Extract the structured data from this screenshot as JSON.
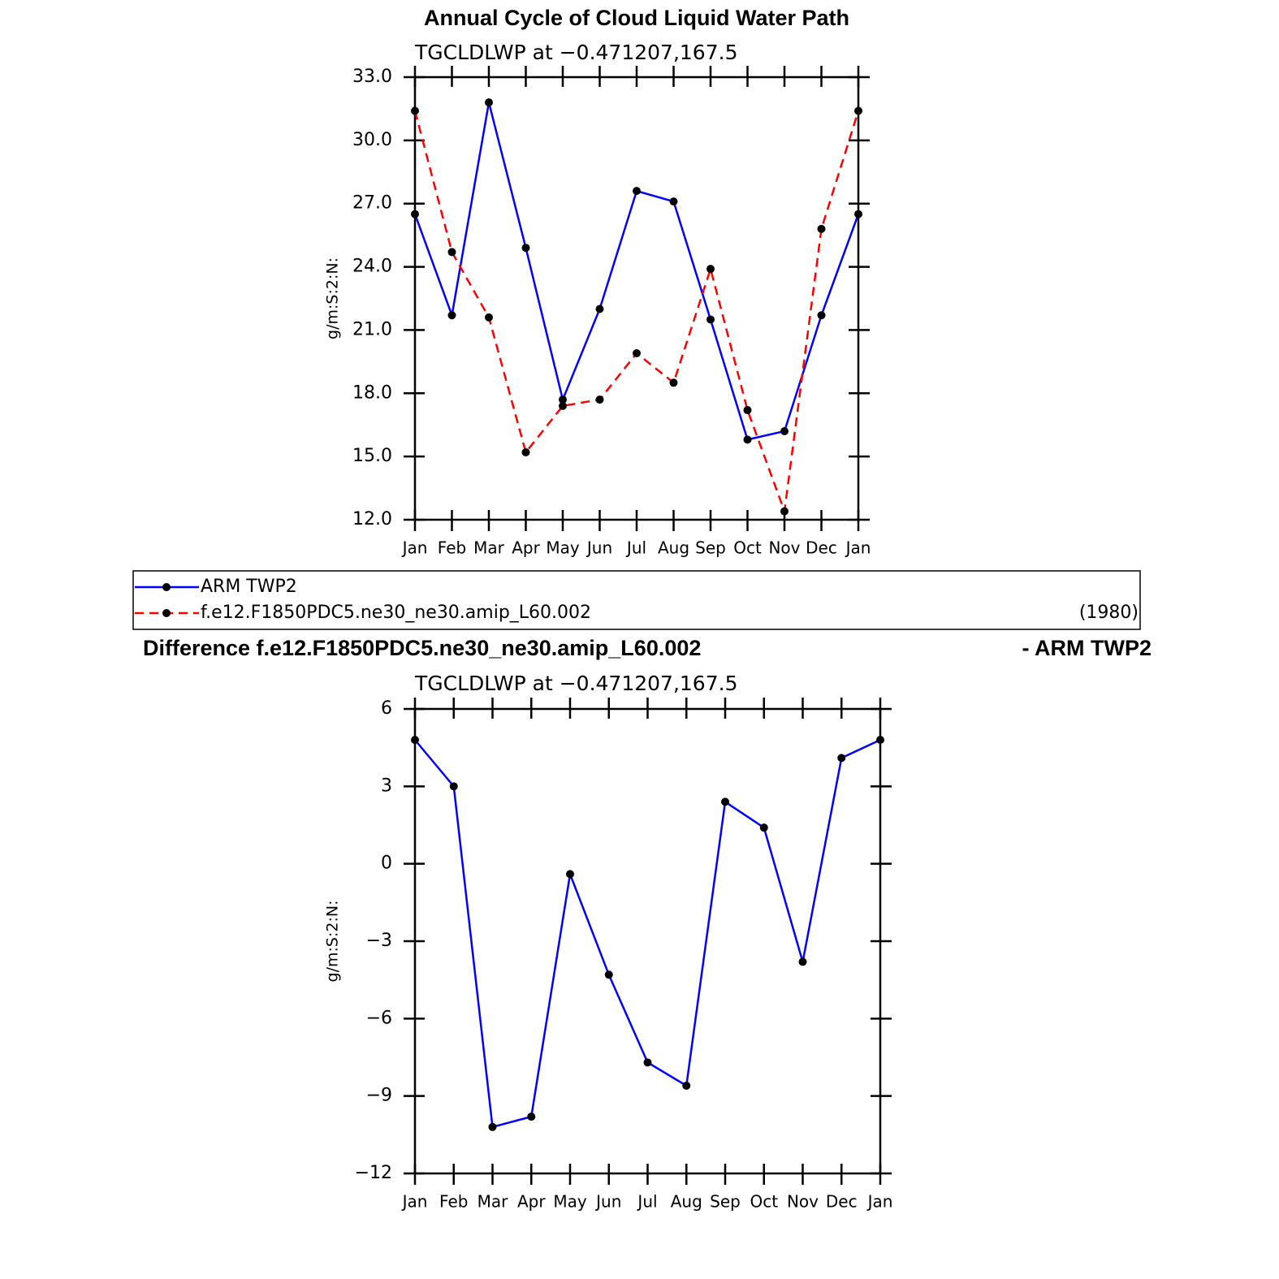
{
  "chart_data": [
    {
      "type": "line",
      "title": "Annual Cycle of Cloud Liquid Water Path",
      "subtitle": "TGCLDLWP at −0.471207,167.5",
      "y_label": "g/m:S:2:N:",
      "categories": [
        "Jan",
        "Feb",
        "Mar",
        "Apr",
        "May",
        "Jun",
        "Jul",
        "Aug",
        "Sep",
        "Oct",
        "Nov",
        "Dec",
        "Jan"
      ],
      "series": [
        {
          "name": "ARM TWP2",
          "color": "#0000ff",
          "linestyle": "solid",
          "values": [
            26.5,
            21.7,
            31.8,
            24.9,
            17.7,
            22.0,
            27.6,
            27.1,
            21.5,
            15.8,
            16.2,
            21.7,
            26.5
          ]
        },
        {
          "name": "f.e12.F1850PDC5.ne30_ne30.amip_L60.002",
          "color": "#ff0000",
          "linestyle": "dashed",
          "values": [
            31.4,
            24.7,
            21.6,
            15.2,
            17.4,
            17.7,
            19.9,
            18.5,
            23.9,
            17.2,
            12.4,
            25.8,
            31.4
          ]
        }
      ],
      "legend_note": "(1980)",
      "ylim": [
        12,
        33
      ],
      "yticks": [
        {
          "value": 12,
          "label": "12.0"
        },
        {
          "value": 15,
          "label": "15.0"
        },
        {
          "value": 18,
          "label": "18.0"
        },
        {
          "value": 21,
          "label": "21.0"
        },
        {
          "value": 24,
          "label": "24.0"
        },
        {
          "value": 27,
          "label": "27.0"
        },
        {
          "value": 30,
          "label": "30.0"
        },
        {
          "value": 33,
          "label": "33.0"
        }
      ]
    },
    {
      "type": "line",
      "title": "Difference f.e12.F1850PDC5.ne30_ne30.amip_L60.002",
      "title_right": "- ARM TWP2",
      "subtitle": "TGCLDLWP at −0.471207,167.5",
      "y_label": "g/m:S:2:N:",
      "categories": [
        "Jan",
        "Feb",
        "Mar",
        "Apr",
        "May",
        "Jun",
        "Jul",
        "Aug",
        "Sep",
        "Oct",
        "Nov",
        "Dec",
        "Jan"
      ],
      "series": [
        {
          "color": "#0000ff",
          "linestyle": "solid",
          "values": [
            4.8,
            3.0,
            -10.2,
            -9.8,
            -0.4,
            -4.3,
            -7.7,
            -8.6,
            2.4,
            1.4,
            -3.8,
            4.1,
            4.8
          ]
        }
      ],
      "ylim": [
        -12,
        6
      ],
      "yticks": [
        {
          "value": -12,
          "label": "−12"
        },
        {
          "value": -9,
          "label": "−9"
        },
        {
          "value": -6,
          "label": "−6"
        },
        {
          "value": -3,
          "label": "−3"
        },
        0,
        3,
        6
      ]
    }
  ]
}
